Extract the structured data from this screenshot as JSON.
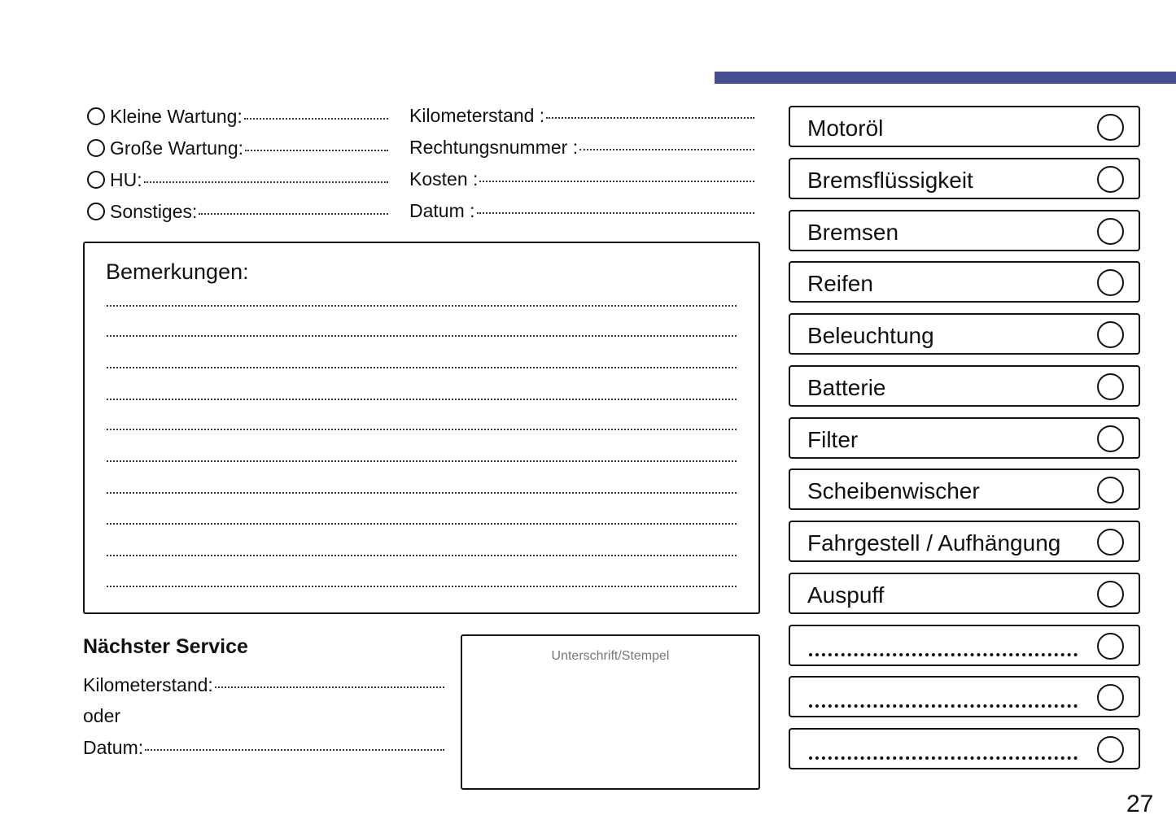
{
  "accent_color": "#474e8f",
  "service_types": [
    {
      "label": "Kleine Wartung:"
    },
    {
      "label": "Große Wartung:"
    },
    {
      "label": "HU:"
    },
    {
      "label": "Sonstiges:"
    }
  ],
  "details": [
    {
      "label": "Kilometerstand :"
    },
    {
      "label": "Rechtungsnummer :"
    },
    {
      "label": "Kosten :"
    },
    {
      "label": "Datum :"
    }
  ],
  "remarks": {
    "title": "Bemerkungen:"
  },
  "next_service": {
    "title": "Nächster Service",
    "mileage_label": "Kilometerstand:",
    "or_label": "oder",
    "date_label": "Datum:"
  },
  "signature": {
    "label": "Unterschrift/Stempel"
  },
  "checklist": [
    {
      "label": "Motoröl"
    },
    {
      "label": "Bremsflüssigkeit"
    },
    {
      "label": "Bremsen"
    },
    {
      "label": "Reifen"
    },
    {
      "label": "Beleuchtung"
    },
    {
      "label": "Batterie"
    },
    {
      "label": "Filter"
    },
    {
      "label": "Scheibenwischer"
    },
    {
      "label": "Fahrgestell / Aufhängung"
    },
    {
      "label": "Auspuff"
    },
    {
      "label": ""
    },
    {
      "label": ""
    },
    {
      "label": ""
    }
  ],
  "page_number": "27"
}
